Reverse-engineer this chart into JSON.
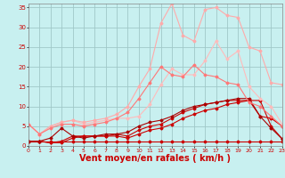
{
  "bg_color": "#c8f0f0",
  "grid_color": "#a0c8c8",
  "xlabel": "Vent moyen/en rafales ( km/h )",
  "xlabel_color": "#cc0000",
  "xlabel_fontsize": 7,
  "ylim": [
    0,
    36
  ],
  "xlim": [
    0,
    23
  ],
  "yticks": [
    0,
    5,
    10,
    15,
    20,
    25,
    30,
    35
  ],
  "xticks": [
    0,
    1,
    2,
    3,
    4,
    5,
    6,
    7,
    8,
    9,
    10,
    11,
    12,
    13,
    14,
    15,
    16,
    17,
    18,
    19,
    20,
    21,
    22,
    23
  ],
  "series": [
    {
      "x": [
        0,
        1,
        2,
        3,
        4,
        5,
        6,
        7,
        8,
        9,
        10,
        11,
        12,
        13,
        14,
        15,
        16,
        17,
        18,
        19,
        20,
        21,
        22,
        23
      ],
      "y": [
        1.2,
        1.2,
        1.2,
        1.2,
        1.2,
        1.2,
        1.2,
        1.2,
        1.2,
        1.2,
        1.2,
        1.2,
        1.2,
        1.2,
        1.2,
        1.2,
        1.2,
        1.2,
        1.2,
        1.2,
        1.2,
        1.2,
        1.2,
        1.2
      ],
      "color": "#cc0000",
      "lw": 0.8,
      "marker": "D",
      "ms": 1.5
    },
    {
      "x": [
        0,
        1,
        2,
        3,
        4,
        5,
        6,
        7,
        8,
        9,
        10,
        11,
        12,
        13,
        14,
        15,
        16,
        17,
        18,
        19,
        20,
        21,
        22,
        23
      ],
      "y": [
        1.2,
        1.2,
        0.8,
        0.8,
        2.0,
        2.5,
        2.5,
        2.5,
        2.5,
        2.0,
        3.0,
        4.0,
        4.5,
        5.5,
        7.0,
        8.0,
        9.0,
        9.5,
        10.5,
        11.0,
        11.5,
        11.5,
        5.0,
        1.8
      ],
      "color": "#cc0000",
      "lw": 0.8,
      "marker": "D",
      "ms": 1.5
    },
    {
      "x": [
        0,
        1,
        2,
        3,
        4,
        5,
        6,
        7,
        8,
        9,
        10,
        11,
        12,
        13,
        14,
        15,
        16,
        17,
        18,
        19,
        20,
        21,
        22,
        23
      ],
      "y": [
        1.2,
        1.2,
        0.8,
        1.2,
        2.5,
        2.5,
        2.5,
        2.5,
        3.0,
        2.5,
        4.0,
        5.0,
        5.5,
        7.0,
        8.5,
        9.5,
        10.5,
        11.0,
        11.5,
        11.5,
        11.5,
        7.5,
        7.0,
        5.0
      ],
      "color": "#cc0000",
      "lw": 0.8,
      "marker": "D",
      "ms": 1.5
    },
    {
      "x": [
        0,
        1,
        2,
        3,
        4,
        5,
        6,
        7,
        8,
        9,
        10,
        11,
        12,
        13,
        14,
        15,
        16,
        17,
        18,
        19,
        20,
        21,
        22,
        23
      ],
      "y": [
        1.2,
        1.2,
        2.0,
        4.5,
        2.5,
        2.0,
        2.5,
        3.0,
        3.0,
        3.5,
        5.0,
        6.0,
        6.5,
        7.5,
        9.0,
        10.0,
        10.5,
        11.0,
        11.5,
        12.0,
        12.0,
        7.5,
        4.5,
        1.8
      ],
      "color": "#aa0000",
      "lw": 0.8,
      "marker": "D",
      "ms": 1.5
    },
    {
      "x": [
        0,
        1,
        2,
        3,
        4,
        5,
        6,
        7,
        8,
        9,
        10,
        11,
        12,
        13,
        14,
        15,
        16,
        17,
        18,
        19,
        20,
        21,
        22,
        23
      ],
      "y": [
        5.5,
        3.0,
        5.0,
        6.0,
        6.5,
        5.5,
        6.0,
        6.5,
        7.0,
        7.0,
        7.5,
        10.5,
        15.5,
        19.5,
        18.0,
        18.0,
        21.5,
        26.5,
        22.0,
        24.0,
        15.0,
        12.0,
        10.0,
        5.5
      ],
      "color": "#ffbbbb",
      "lw": 0.8,
      "marker": "D",
      "ms": 1.5
    },
    {
      "x": [
        0,
        1,
        2,
        3,
        4,
        5,
        6,
        7,
        8,
        9,
        10,
        11,
        12,
        13,
        14,
        15,
        16,
        17,
        18,
        19,
        20,
        21,
        22,
        23
      ],
      "y": [
        5.5,
        3.0,
        5.0,
        6.0,
        6.5,
        6.0,
        6.5,
        7.0,
        8.0,
        10.0,
        15.0,
        19.5,
        31.0,
        36.0,
        28.0,
        26.5,
        34.5,
        35.0,
        33.0,
        32.5,
        25.0,
        24.0,
        16.0,
        15.5
      ],
      "color": "#ffaaaa",
      "lw": 0.8,
      "marker": "D",
      "ms": 1.5
    },
    {
      "x": [
        0,
        1,
        2,
        3,
        4,
        5,
        6,
        7,
        8,
        9,
        10,
        11,
        12,
        13,
        14,
        15,
        16,
        17,
        18,
        19,
        20,
        21,
        22,
        23
      ],
      "y": [
        5.5,
        3.0,
        4.5,
        5.5,
        5.5,
        5.0,
        5.5,
        6.0,
        7.0,
        8.5,
        12.0,
        16.0,
        20.0,
        18.0,
        17.5,
        20.5,
        18.0,
        17.5,
        16.0,
        15.5,
        11.0,
        10.0,
        7.5,
        5.0
      ],
      "color": "#ff7777",
      "lw": 0.8,
      "marker": "D",
      "ms": 1.5
    }
  ]
}
